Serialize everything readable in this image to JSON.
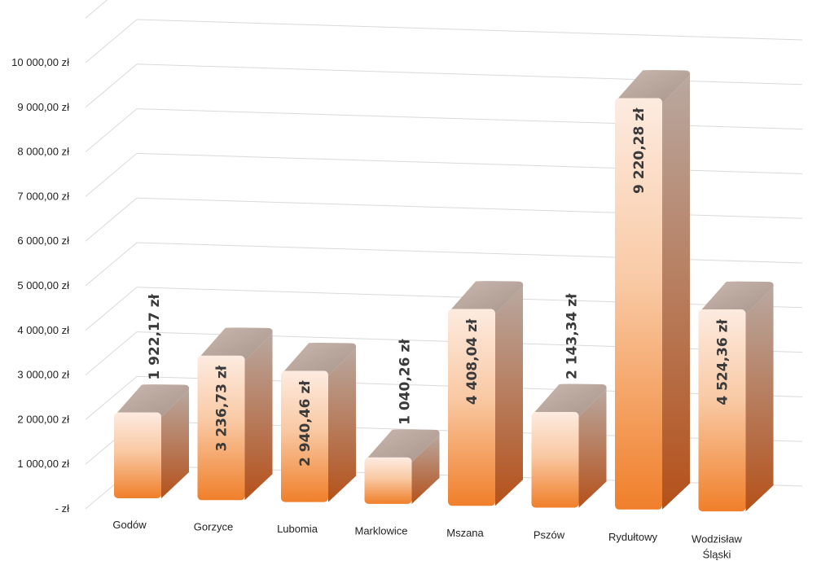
{
  "chart_data": {
    "type": "bar",
    "categories": [
      "Godów",
      "Gorzyce",
      "Lubomia",
      "Marklowice",
      "Mszana",
      "Pszów",
      "Rydułtowy",
      "Wodzisław Śląski"
    ],
    "category_lines": [
      [
        "Godów"
      ],
      [
        "Gorzyce"
      ],
      [
        "Lubomia"
      ],
      [
        "Marklowice"
      ],
      [
        "Mszana"
      ],
      [
        "Pszów"
      ],
      [
        "Rydułtowy"
      ],
      [
        "Wodzisław",
        "Śląski"
      ]
    ],
    "values": [
      1922.17,
      3236.73,
      2940.46,
      1040.26,
      4408.04,
      2143.34,
      9220.28,
      4524.36
    ],
    "data_labels": [
      "1 922,17 zł",
      "3 236,73 zł",
      "2 940,46 zł",
      "1 040,26 zł",
      "4 408,04 zł",
      "2 143,34 zł",
      "9 220,28 zł",
      "4 524,36 zł"
    ],
    "y_ticks": [
      0,
      1000,
      2000,
      3000,
      4000,
      5000,
      6000,
      7000,
      8000,
      9000,
      10000,
      11000
    ],
    "y_tick_labels": [
      " -  zł",
      "1 000,00 zł",
      "2 000,00 zł",
      "3 000,00 zł",
      "4 000,00 zł",
      "5 000,00 zł",
      "6 000,00 zł",
      "7 000,00 zł",
      "8 000,00 zł",
      "9 000,00 zł",
      "10 000,00 zł",
      ""
    ],
    "ylim": [
      0,
      11000
    ],
    "grid": true,
    "legend": "none",
    "title": "",
    "xlabel": "",
    "ylabel": "",
    "colors": {
      "bar_bottom": "#f07f2a",
      "bar_top": "#fdebe0",
      "side_top": "#b9a8a0",
      "side_bottom": "#b5511a",
      "cap_light": "#c9b8af",
      "cap_dark": "#a8958c",
      "grid": "#d9d9d9"
    }
  }
}
